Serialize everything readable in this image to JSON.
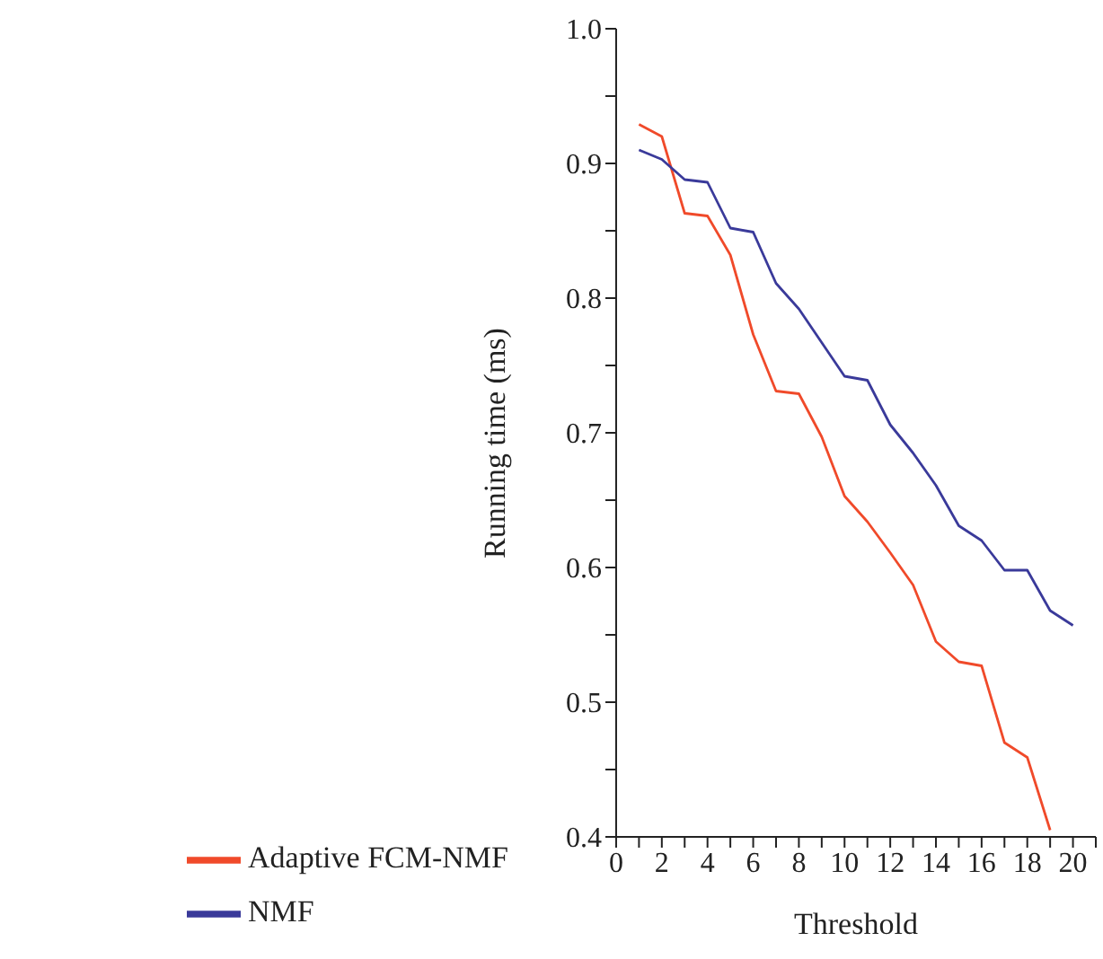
{
  "chart_data": {
    "type": "line",
    "xlabel": "Threshold",
    "ylabel": "Running time (ms)",
    "x": [
      1,
      2,
      3,
      4,
      5,
      6,
      7,
      8,
      9,
      10,
      11,
      12,
      13,
      14,
      15,
      16,
      17,
      18,
      19,
      20
    ],
    "series": [
      {
        "name": "Adaptive FCM-NMF",
        "color": "#f04a2a",
        "values": [
          0.929,
          0.92,
          0.863,
          0.861,
          0.832,
          0.773,
          0.731,
          0.729,
          0.697,
          0.653,
          0.634,
          0.611,
          0.587,
          0.545,
          0.53,
          0.527,
          0.47,
          0.459,
          0.405,
          null
        ]
      },
      {
        "name": "NMF",
        "color": "#3a3a9a",
        "values": [
          0.91,
          0.903,
          0.888,
          0.886,
          0.852,
          0.849,
          0.811,
          0.792,
          0.767,
          0.742,
          0.739,
          0.706,
          0.685,
          0.661,
          0.631,
          0.62,
          0.598,
          0.598,
          0.568,
          0.557
        ]
      }
    ],
    "xlim": [
      0,
      21
    ],
    "xticks": [
      0,
      {
        "value": 1,
        "label": null
      },
      2,
      {
        "value": 3,
        "label": null
      },
      4,
      {
        "value": 5,
        "label": null
      },
      6,
      {
        "value": 7,
        "label": null
      },
      8,
      {
        "value": 9,
        "label": null
      },
      10,
      {
        "value": 11,
        "label": null
      },
      12,
      {
        "value": 13,
        "label": null
      },
      14,
      {
        "value": 15,
        "label": null
      },
      16,
      {
        "value": 17,
        "label": null
      },
      18,
      {
        "value": 19,
        "label": null
      },
      20,
      {
        "value": 21,
        "label": null
      }
    ],
    "ylim": [
      0.4,
      1.0
    ],
    "yticks": [
      {
        "value": 0.4,
        "label": "0.4"
      },
      {
        "value": 0.45,
        "label": null
      },
      {
        "value": 0.5,
        "label": "0.5"
      },
      {
        "value": 0.55,
        "label": null
      },
      {
        "value": 0.6,
        "label": "0.6"
      },
      {
        "value": 0.65,
        "label": null
      },
      {
        "value": 0.7,
        "label": "0.7"
      },
      {
        "value": 0.75,
        "label": null
      },
      {
        "value": 0.8,
        "label": "0.8"
      },
      {
        "value": 0.85,
        "label": null
      },
      {
        "value": 0.9,
        "label": "0.9"
      },
      {
        "value": 0.95,
        "label": null
      },
      {
        "value": 1.0,
        "label": "1.0"
      }
    ],
    "grid": false,
    "legend": "bottom",
    "marker": "none",
    "line_style": "solid"
  }
}
